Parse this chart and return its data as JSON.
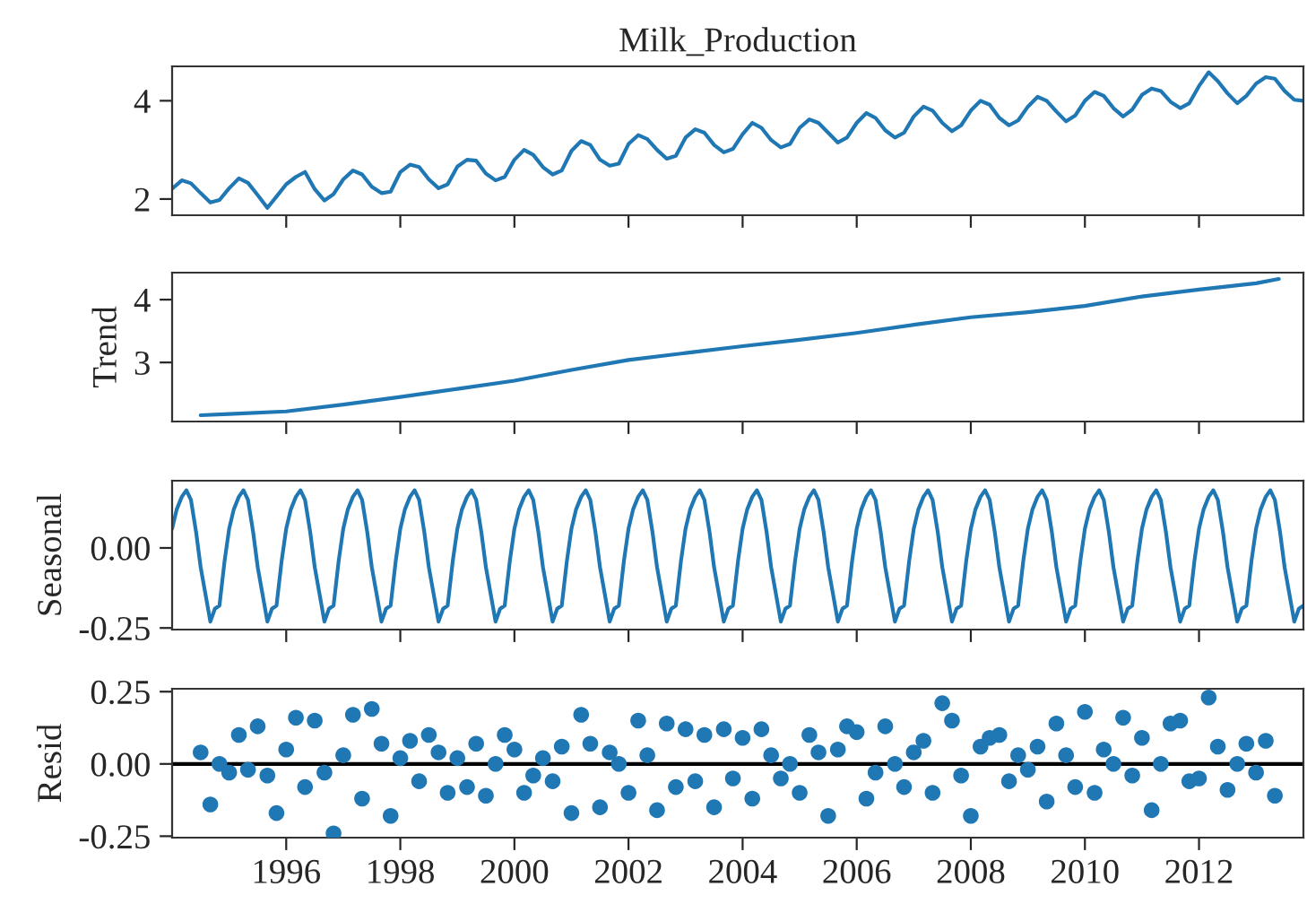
{
  "chart_data": [
    {
      "type": "line",
      "title": "Milk_Production",
      "xlim": [
        1994,
        2013.83
      ],
      "xticks": [
        1996,
        1998,
        2000,
        2002,
        2004,
        2006,
        2008,
        2010,
        2012
      ],
      "ylim": [
        1.67,
        4.7
      ],
      "yticks": [
        2,
        4
      ],
      "tick_labels": "y",
      "grid": false,
      "legend": false,
      "series": [
        {
          "color": "#1f77b4",
          "x": [
            1994,
            1994.17,
            1994.33,
            1994.5,
            1994.67,
            1994.83,
            1995,
            1995.17,
            1995.33,
            1995.5,
            1995.67,
            1995.83,
            1996,
            1996.17,
            1996.33,
            1996.5,
            1996.67,
            1996.83,
            1997,
            1997.17,
            1997.33,
            1997.5,
            1997.67,
            1997.83,
            1998,
            1998.17,
            1998.33,
            1998.5,
            1998.67,
            1998.83,
            1999,
            1999.17,
            1999.33,
            1999.5,
            1999.67,
            1999.83,
            2000,
            2000.17,
            2000.33,
            2000.5,
            2000.67,
            2000.83,
            2001,
            2001.17,
            2001.33,
            2001.5,
            2001.67,
            2001.83,
            2002,
            2002.17,
            2002.33,
            2002.5,
            2002.67,
            2002.83,
            2003,
            2003.17,
            2003.33,
            2003.5,
            2003.67,
            2003.83,
            2004,
            2004.17,
            2004.33,
            2004.5,
            2004.67,
            2004.83,
            2005,
            2005.17,
            2005.33,
            2005.5,
            2005.67,
            2005.83,
            2006,
            2006.17,
            2006.33,
            2006.5,
            2006.67,
            2006.83,
            2007,
            2007.17,
            2007.33,
            2007.5,
            2007.67,
            2007.83,
            2008,
            2008.17,
            2008.33,
            2008.5,
            2008.67,
            2008.83,
            2009,
            2009.17,
            2009.33,
            2009.5,
            2009.67,
            2009.83,
            2010,
            2010.17,
            2010.33,
            2010.5,
            2010.67,
            2010.83,
            2011,
            2011.17,
            2011.33,
            2011.5,
            2011.67,
            2011.83,
            2012,
            2012.17,
            2012.33,
            2012.5,
            2012.67,
            2012.83,
            2013,
            2013.17,
            2013.33,
            2013.5,
            2013.67,
            2013.83
          ],
          "values": [
            2.21,
            2.38,
            2.32,
            2.12,
            1.93,
            1.98,
            2.22,
            2.42,
            2.33,
            2.08,
            1.82,
            2.05,
            2.3,
            2.45,
            2.55,
            2.2,
            1.97,
            2.1,
            2.4,
            2.58,
            2.5,
            2.25,
            2.12,
            2.15,
            2.55,
            2.7,
            2.65,
            2.4,
            2.22,
            2.3,
            2.66,
            2.8,
            2.78,
            2.52,
            2.38,
            2.45,
            2.8,
            3.0,
            2.9,
            2.65,
            2.5,
            2.58,
            2.98,
            3.18,
            3.1,
            2.8,
            2.68,
            2.72,
            3.12,
            3.3,
            3.22,
            3.0,
            2.82,
            2.88,
            3.25,
            3.42,
            3.35,
            3.1,
            2.95,
            3.02,
            3.32,
            3.55,
            3.45,
            3.2,
            3.05,
            3.12,
            3.45,
            3.62,
            3.55,
            3.35,
            3.15,
            3.25,
            3.55,
            3.75,
            3.65,
            3.4,
            3.25,
            3.35,
            3.68,
            3.88,
            3.8,
            3.55,
            3.38,
            3.5,
            3.8,
            4.0,
            3.92,
            3.65,
            3.5,
            3.6,
            3.88,
            4.08,
            4.0,
            3.78,
            3.58,
            3.7,
            4.0,
            4.18,
            4.1,
            3.85,
            3.68,
            3.82,
            4.12,
            4.25,
            4.2,
            3.98,
            3.85,
            3.95,
            4.3,
            4.58,
            4.4,
            4.15,
            3.95,
            4.1,
            4.35,
            4.48,
            4.45,
            4.2,
            4.02,
            4.0
          ]
        }
      ]
    },
    {
      "type": "line",
      "ylabel": "Trend",
      "xlim": [
        1994,
        2013.83
      ],
      "xticks": [
        1996,
        1998,
        2000,
        2002,
        2004,
        2006,
        2008,
        2010,
        2012
      ],
      "ylim": [
        2.06,
        4.43
      ],
      "yticks": [
        3,
        4
      ],
      "tick_labels": "y",
      "grid": false,
      "legend": false,
      "series": [
        {
          "color": "#1f77b4",
          "x": [
            1994.5,
            1995,
            1996,
            1997,
            1998,
            1999,
            2000,
            2001,
            2002,
            2003,
            2004,
            2005,
            2006,
            2007,
            2008,
            2009,
            2010,
            2011,
            2012,
            2013,
            2013.4
          ],
          "values": [
            2.16,
            2.18,
            2.22,
            2.33,
            2.45,
            2.58,
            2.71,
            2.88,
            3.04,
            3.15,
            3.26,
            3.36,
            3.47,
            3.6,
            3.72,
            3.8,
            3.9,
            4.05,
            4.16,
            4.26,
            4.33
          ]
        }
      ]
    },
    {
      "type": "line",
      "ylabel": "Seasonal",
      "xlim": [
        1994,
        2013.83
      ],
      "xticks": [
        1996,
        1998,
        2000,
        2002,
        2004,
        2006,
        2008,
        2010,
        2012
      ],
      "ylim": [
        -0.255,
        0.21
      ],
      "yticks": [
        {
          "value": -0.25,
          "label": "-0.25"
        },
        {
          "value": 0,
          "label": "0.00"
        }
      ],
      "tick_labels": "y",
      "grid": false,
      "legend": false,
      "series": [
        {
          "color": "#1f77b4",
          "x": [
            1994,
            1994.08,
            1994.17,
            1994.25,
            1994.33,
            1994.42,
            1994.5,
            1994.58,
            1994.67,
            1994.75,
            1994.83,
            1994.92,
            1995,
            1995.08,
            1995.17,
            1995.25,
            1995.33,
            1995.42,
            1995.5,
            1995.58,
            1995.67,
            1995.75,
            1995.83,
            1995.92,
            1996,
            1996.08,
            1996.17,
            1996.25,
            1996.33,
            1996.42,
            1996.5,
            1996.58,
            1996.67,
            1996.75,
            1996.83,
            1996.92,
            1997,
            1997.08,
            1997.17,
            1997.25,
            1997.33,
            1997.42,
            1997.5,
            1997.58,
            1997.67,
            1997.75,
            1997.83,
            1997.92,
            1998,
            1998.08,
            1998.17,
            1998.25,
            1998.33,
            1998.42,
            1998.5,
            1998.58,
            1998.67,
            1998.75,
            1998.83,
            1998.92,
            1999,
            1999.08,
            1999.17,
            1999.25,
            1999.33,
            1999.42,
            1999.5,
            1999.58,
            1999.67,
            1999.75,
            1999.83,
            1999.92,
            2000,
            2000.08,
            2000.17,
            2000.25,
            2000.33,
            2000.42,
            2000.5,
            2000.58,
            2000.67,
            2000.75,
            2000.83,
            2000.92,
            2001,
            2001.08,
            2001.17,
            2001.25,
            2001.33,
            2001.42,
            2001.5,
            2001.58,
            2001.67,
            2001.75,
            2001.83,
            2001.92,
            2002,
            2002.08,
            2002.17,
            2002.25,
            2002.33,
            2002.42,
            2002.5,
            2002.58,
            2002.67,
            2002.75,
            2002.83,
            2002.92,
            2003,
            2003.08,
            2003.17,
            2003.25,
            2003.33,
            2003.42,
            2003.5,
            2003.58,
            2003.67,
            2003.75,
            2003.83,
            2003.92,
            2004,
            2004.08,
            2004.17,
            2004.25,
            2004.33,
            2004.42,
            2004.5,
            2004.58,
            2004.67,
            2004.75,
            2004.83,
            2004.92,
            2005,
            2005.08,
            2005.17,
            2005.25,
            2005.33,
            2005.42,
            2005.5,
            2005.58,
            2005.67,
            2005.75,
            2005.83,
            2005.92,
            2006,
            2006.08,
            2006.17,
            2006.25,
            2006.33,
            2006.42,
            2006.5,
            2006.58,
            2006.67,
            2006.75,
            2006.83,
            2006.92,
            2007,
            2007.08,
            2007.17,
            2007.25,
            2007.33,
            2007.42,
            2007.5,
            2007.58,
            2007.67,
            2007.75,
            2007.83,
            2007.92,
            2008,
            2008.08,
            2008.17,
            2008.25,
            2008.33,
            2008.42,
            2008.5,
            2008.58,
            2008.67,
            2008.75,
            2008.83,
            2008.92,
            2009,
            2009.08,
            2009.17,
            2009.25,
            2009.33,
            2009.42,
            2009.5,
            2009.58,
            2009.67,
            2009.75,
            2009.83,
            2009.92,
            2010,
            2010.08,
            2010.17,
            2010.25,
            2010.33,
            2010.42,
            2010.5,
            2010.58,
            2010.67,
            2010.75,
            2010.83,
            2010.92,
            2011,
            2011.08,
            2011.17,
            2011.25,
            2011.33,
            2011.42,
            2011.5,
            2011.58,
            2011.67,
            2011.75,
            2011.83,
            2011.92,
            2012,
            2012.08,
            2012.17,
            2012.25,
            2012.33,
            2012.42,
            2012.5,
            2012.58,
            2012.67,
            2012.75,
            2012.83,
            2012.92,
            2013,
            2013.08,
            2013.17,
            2013.25,
            2013.33,
            2013.42,
            2013.5,
            2013.58,
            2013.67,
            2013.75,
            2013.83
          ],
          "values": [
            0.06,
            0.12,
            0.16,
            0.18,
            0.15,
            0.05,
            -0.06,
            -0.14,
            -0.23,
            -0.19,
            -0.18,
            -0.04,
            0.06,
            0.12,
            0.16,
            0.18,
            0.15,
            0.05,
            -0.06,
            -0.14,
            -0.23,
            -0.19,
            -0.18,
            -0.04,
            0.06,
            0.12,
            0.16,
            0.18,
            0.15,
            0.05,
            -0.06,
            -0.14,
            -0.23,
            -0.19,
            -0.18,
            -0.04,
            0.06,
            0.12,
            0.16,
            0.18,
            0.15,
            0.05,
            -0.06,
            -0.14,
            -0.23,
            -0.19,
            -0.18,
            -0.04,
            0.06,
            0.12,
            0.16,
            0.18,
            0.15,
            0.05,
            -0.06,
            -0.14,
            -0.23,
            -0.19,
            -0.18,
            -0.04,
            0.06,
            0.12,
            0.16,
            0.18,
            0.15,
            0.05,
            -0.06,
            -0.14,
            -0.23,
            -0.19,
            -0.18,
            -0.04,
            0.06,
            0.12,
            0.16,
            0.18,
            0.15,
            0.05,
            -0.06,
            -0.14,
            -0.23,
            -0.19,
            -0.18,
            -0.04,
            0.06,
            0.12,
            0.16,
            0.18,
            0.15,
            0.05,
            -0.06,
            -0.14,
            -0.23,
            -0.19,
            -0.18,
            -0.04,
            0.06,
            0.12,
            0.16,
            0.18,
            0.15,
            0.05,
            -0.06,
            -0.14,
            -0.23,
            -0.19,
            -0.18,
            -0.04,
            0.06,
            0.12,
            0.16,
            0.18,
            0.15,
            0.05,
            -0.06,
            -0.14,
            -0.23,
            -0.19,
            -0.18,
            -0.04,
            0.06,
            0.12,
            0.16,
            0.18,
            0.15,
            0.05,
            -0.06,
            -0.14,
            -0.23,
            -0.19,
            -0.18,
            -0.04,
            0.06,
            0.12,
            0.16,
            0.18,
            0.15,
            0.05,
            -0.06,
            -0.14,
            -0.23,
            -0.19,
            -0.18,
            -0.04,
            0.06,
            0.12,
            0.16,
            0.18,
            0.15,
            0.05,
            -0.06,
            -0.14,
            -0.23,
            -0.19,
            -0.18,
            -0.04,
            0.06,
            0.12,
            0.16,
            0.18,
            0.15,
            0.05,
            -0.06,
            -0.14,
            -0.23,
            -0.19,
            -0.18,
            -0.04,
            0.06,
            0.12,
            0.16,
            0.18,
            0.15,
            0.05,
            -0.06,
            -0.14,
            -0.23,
            -0.19,
            -0.18,
            -0.04,
            0.06,
            0.12,
            0.16,
            0.18,
            0.15,
            0.05,
            -0.06,
            -0.14,
            -0.23,
            -0.19,
            -0.18,
            -0.04,
            0.06,
            0.12,
            0.16,
            0.18,
            0.15,
            0.05,
            -0.06,
            -0.14,
            -0.23,
            -0.19,
            -0.18,
            -0.04,
            0.06,
            0.12,
            0.16,
            0.18,
            0.15,
            0.05,
            -0.06,
            -0.14,
            -0.23,
            -0.19,
            -0.18,
            -0.04,
            0.06,
            0.12,
            0.16,
            0.18,
            0.15,
            0.05,
            -0.06,
            -0.14,
            -0.23,
            -0.19,
            -0.18,
            -0.04,
            0.06,
            0.12,
            0.16,
            0.18,
            0.15,
            0.05,
            -0.06,
            -0.14,
            -0.23,
            -0.19,
            -0.18
          ]
        }
      ]
    },
    {
      "type": "scatter",
      "ylabel": "Resid",
      "marker": "circle",
      "xlim": [
        1994,
        2013.83
      ],
      "xticks": [
        1996,
        1998,
        2000,
        2002,
        2004,
        2006,
        2008,
        2010,
        2012
      ],
      "ylim": [
        -0.255,
        0.26
      ],
      "yticks": [
        {
          "value": -0.25,
          "label": "-0.25"
        },
        {
          "value": 0,
          "label": "0.00"
        },
        {
          "value": 0.25,
          "label": "0.25"
        }
      ],
      "grid": false,
      "legend": false,
      "ref_lines": [
        {
          "axis": "y",
          "value": 0,
          "color": "#000000"
        }
      ],
      "series": [
        {
          "color": "#1f77b4",
          "x": [
            1994.5,
            1994.67,
            1994.83,
            1995,
            1995.17,
            1995.33,
            1995.5,
            1995.67,
            1995.83,
            1996,
            1996.17,
            1996.33,
            1996.5,
            1996.67,
            1996.83,
            1997,
            1997.17,
            1997.33,
            1997.5,
            1997.67,
            1997.83,
            1998,
            1998.17,
            1998.33,
            1998.5,
            1998.67,
            1998.83,
            1999,
            1999.17,
            1999.33,
            1999.5,
            1999.67,
            1999.83,
            2000,
            2000.17,
            2000.33,
            2000.5,
            2000.67,
            2000.83,
            2001,
            2001.17,
            2001.33,
            2001.5,
            2001.67,
            2001.83,
            2002,
            2002.17,
            2002.33,
            2002.5,
            2002.67,
            2002.83,
            2003,
            2003.17,
            2003.33,
            2003.5,
            2003.67,
            2003.83,
            2004,
            2004.17,
            2004.33,
            2004.5,
            2004.67,
            2004.83,
            2005,
            2005.17,
            2005.33,
            2005.5,
            2005.67,
            2005.83,
            2006,
            2006.17,
            2006.33,
            2006.5,
            2006.67,
            2006.83,
            2007,
            2007.17,
            2007.33,
            2007.5,
            2007.67,
            2007.83,
            2008,
            2008.17,
            2008.33,
            2008.5,
            2008.67,
            2008.83,
            2009,
            2009.17,
            2009.33,
            2009.5,
            2009.67,
            2009.83,
            2010,
            2010.17,
            2010.33,
            2010.5,
            2010.67,
            2010.83,
            2011,
            2011.17,
            2011.33,
            2011.5,
            2011.67,
            2011.83,
            2012,
            2012.17,
            2012.33,
            2012.5,
            2012.67,
            2012.83,
            2013,
            2013.17,
            2013.33
          ],
          "values": [
            0.04,
            -0.14,
            0.0,
            -0.03,
            0.1,
            -0.02,
            0.13,
            -0.04,
            -0.17,
            0.05,
            0.16,
            -0.08,
            0.15,
            -0.03,
            -0.24,
            0.03,
            0.17,
            -0.12,
            0.19,
            0.07,
            -0.18,
            0.02,
            0.08,
            -0.06,
            0.1,
            0.04,
            -0.1,
            0.02,
            -0.08,
            0.07,
            -0.11,
            0.0,
            0.1,
            0.05,
            -0.1,
            -0.04,
            0.02,
            -0.06,
            0.06,
            -0.17,
            0.17,
            0.07,
            -0.15,
            0.04,
            0.0,
            -0.1,
            0.15,
            0.03,
            -0.16,
            0.14,
            -0.08,
            0.12,
            -0.06,
            0.1,
            -0.15,
            0.12,
            -0.05,
            0.09,
            -0.12,
            0.12,
            0.03,
            -0.05,
            0.0,
            -0.1,
            0.1,
            0.04,
            -0.18,
            0.05,
            0.13,
            0.11,
            -0.12,
            -0.03,
            0.13,
            0.0,
            -0.08,
            0.04,
            0.08,
            -0.1,
            0.21,
            0.15,
            -0.04,
            -0.18,
            0.06,
            0.09,
            0.1,
            -0.06,
            0.03,
            -0.02,
            0.06,
            -0.13,
            0.14,
            0.03,
            -0.08,
            0.18,
            -0.1,
            0.05,
            0.0,
            0.16,
            -0.04,
            0.09,
            -0.16,
            0.0,
            0.14,
            0.15,
            -0.06,
            -0.05,
            0.23,
            0.06,
            -0.09,
            0.0,
            0.07,
            -0.03,
            0.08,
            -0.11
          ]
        }
      ]
    }
  ]
}
